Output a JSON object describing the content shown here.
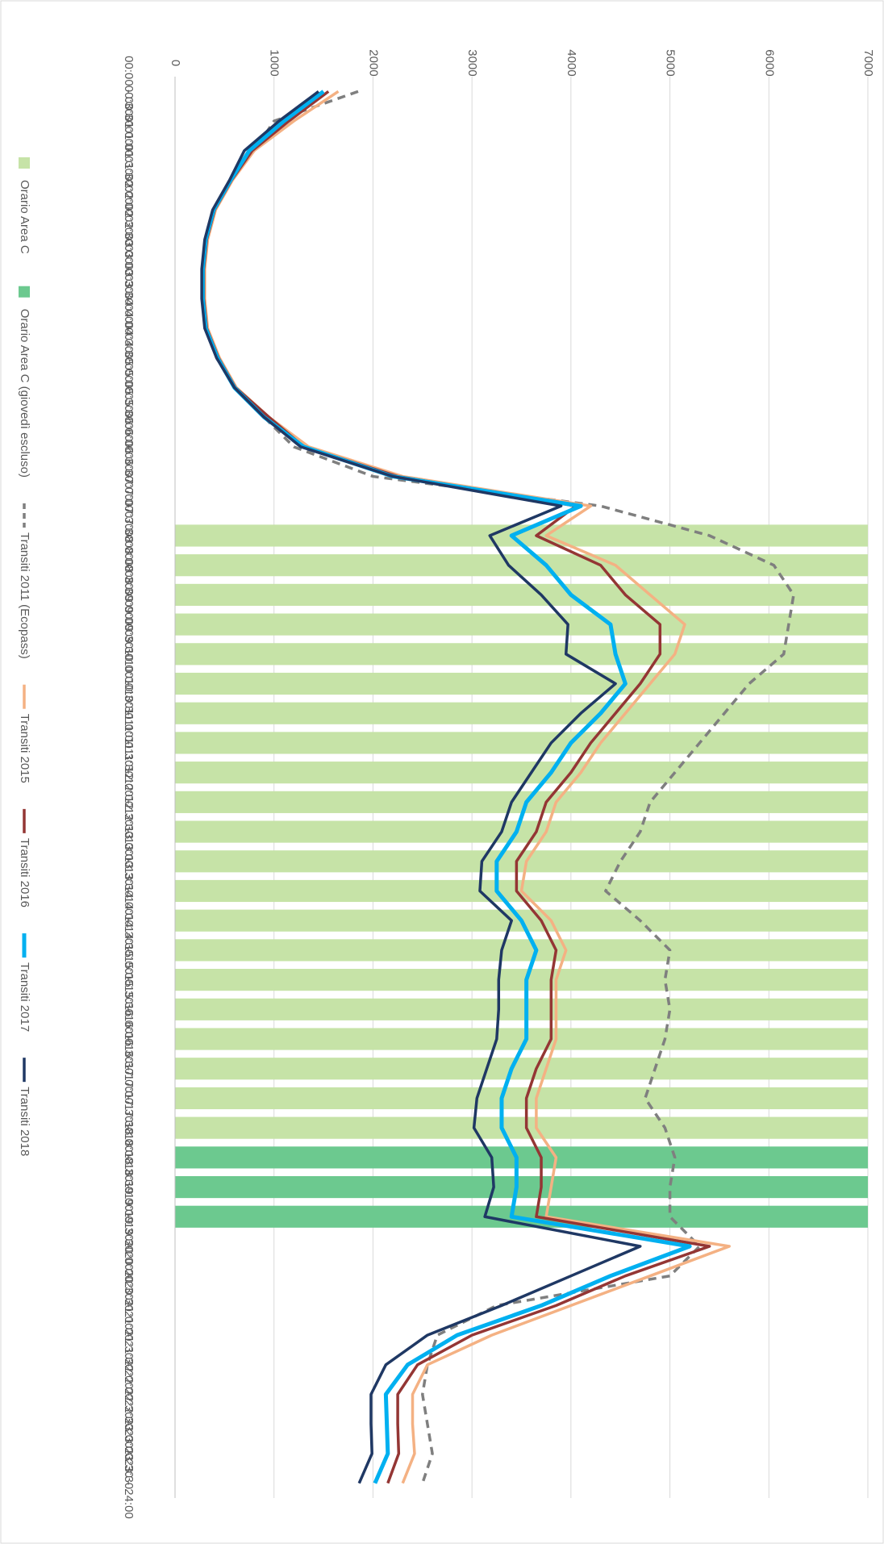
{
  "chart_data": {
    "type": "line",
    "orientation": "rotated",
    "categories": [
      "00:00 - 00:30",
      "00:30 - 01:00",
      "01:00 - 01:30",
      "01:30 - 02:00",
      "02:00 - 02:30",
      "02:30 - 03:00",
      "03:00 - 03:30",
      "03:30 - 04:00",
      "04:00 - 04:30",
      "04:30 - 05:00",
      "05:00 - 05:30",
      "05:30 - 06:00",
      "06:00 - 06:30",
      "06:30 - 07:00",
      "07:00 - 07:30",
      "07:30 - 08:00",
      "08:00 - 08:30",
      "08:30 - 09:00",
      "09:00 - 09:30",
      "09:30 - 10:00",
      "10:00 - 10:30",
      "10:30 - 11:00",
      "11:00 - 11:30",
      "11:30 - 12:00",
      "12:00 - 12:30",
      "12:30 - 13:00",
      "13:00 - 13:30",
      "13:30 - 14:00",
      "14:00 - 14:30",
      "14:30 - 15:00",
      "15:00 - 15:30",
      "15:30 - 16:00",
      "16:00 - 16:30",
      "16:30 - 17:00",
      "17:00 - 17:30",
      "17:30 - 18:00",
      "18:00 - 18:30",
      "18:30 - 19:00",
      "19:00 - 19:30",
      "19:30 - 20:00",
      "20:00 - 20:30",
      "20:30 - 21:00",
      "21:00 - 21:30",
      "21:30 - 22:00",
      "22:00 - 22:30",
      "22:30 - 23:00",
      "23:00 - 23:30",
      "23:30 - 24:00"
    ],
    "ylim": [
      0,
      7000
    ],
    "yticks": [
      0,
      1000,
      2000,
      3000,
      4000,
      5000,
      6000,
      7000
    ],
    "grid": true,
    "legend": "bottom",
    "series": [
      {
        "name": "Orario Area C",
        "type": "bar",
        "color": "#c6e3a7",
        "values": [
          null,
          null,
          null,
          null,
          null,
          null,
          null,
          null,
          null,
          null,
          null,
          null,
          null,
          null,
          null,
          7000,
          7000,
          7000,
          7000,
          7000,
          7000,
          7000,
          7000,
          7000,
          7000,
          7000,
          7000,
          7000,
          7000,
          7000,
          7000,
          7000,
          7000,
          7000,
          7000,
          7000,
          null,
          null,
          null,
          null,
          null,
          null,
          null,
          null,
          null,
          null,
          null,
          null
        ]
      },
      {
        "name": "Orario Area C (giovedì escluso)",
        "type": "bar",
        "color": "#6cc98f",
        "values": [
          null,
          null,
          null,
          null,
          null,
          null,
          null,
          null,
          null,
          null,
          null,
          null,
          null,
          null,
          null,
          null,
          null,
          null,
          null,
          null,
          null,
          null,
          null,
          null,
          null,
          null,
          null,
          null,
          null,
          null,
          null,
          null,
          null,
          null,
          null,
          null,
          7000,
          7000,
          7000,
          null,
          null,
          null,
          null,
          null,
          null,
          null,
          null,
          null
        ]
      },
      {
        "name": "Transiti 2011 (Ecopass)",
        "type": "line",
        "dashed": true,
        "color": "#7f7f7f",
        "values": [
          1850,
          1000,
          800,
          550,
          400,
          310,
          280,
          290,
          320,
          420,
          600,
          900,
          1200,
          2000,
          4300,
          5400,
          6050,
          6250,
          6200,
          6150,
          5800,
          5550,
          5300,
          5050,
          4800,
          4700,
          4500,
          4350,
          4700,
          5000,
          4950,
          5000,
          4950,
          4850,
          4750,
          4950,
          5050,
          5000,
          5000,
          5300,
          5000,
          3250,
          2650,
          2550,
          2500,
          2550,
          2600,
          2500
        ]
      },
      {
        "name": "Transiti 2015",
        "type": "line",
        "color": "#f4b183",
        "values": [
          1650,
          1200,
          800,
          580,
          410,
          330,
          300,
          300,
          330,
          450,
          620,
          950,
          1350,
          2300,
          4200,
          3750,
          4450,
          4800,
          5150,
          5050,
          4800,
          4550,
          4300,
          4100,
          3850,
          3750,
          3550,
          3500,
          3800,
          3950,
          3850,
          3850,
          3850,
          3750,
          3650,
          3650,
          3850,
          3800,
          3750,
          5600,
          4800,
          4000,
          3200,
          2550,
          2400,
          2400,
          2420,
          2300
        ]
      },
      {
        "name": "Transiti 2016",
        "type": "line",
        "color": "#943634",
        "values": [
          1550,
          1150,
          780,
          570,
          400,
          320,
          290,
          290,
          320,
          440,
          610,
          950,
          1300,
          2250,
          4050,
          3650,
          4300,
          4550,
          4900,
          4900,
          4700,
          4450,
          4200,
          4000,
          3750,
          3650,
          3450,
          3450,
          3700,
          3850,
          3800,
          3800,
          3800,
          3650,
          3550,
          3550,
          3700,
          3700,
          3650,
          5400,
          4550,
          3850,
          3000,
          2450,
          2250,
          2250,
          2260,
          2150
        ]
      },
      {
        "name": "Transiti 2017",
        "type": "line",
        "color": "#00b0f0",
        "width": 5,
        "values": [
          1500,
          1100,
          750,
          560,
          390,
          310,
          280,
          280,
          310,
          430,
          600,
          900,
          1300,
          2200,
          4100,
          3400,
          3750,
          4000,
          4400,
          4450,
          4550,
          4300,
          4000,
          3800,
          3550,
          3450,
          3250,
          3250,
          3500,
          3650,
          3550,
          3550,
          3550,
          3400,
          3300,
          3300,
          3450,
          3450,
          3400,
          5200,
          4400,
          3700,
          2850,
          2350,
          2130,
          2140,
          2150,
          2020
        ]
      },
      {
        "name": "Transiti 2018",
        "type": "line",
        "color": "#1f3864",
        "values": [
          1450,
          1050,
          700,
          550,
          380,
          300,
          270,
          270,
          300,
          420,
          600,
          900,
          1270,
          2200,
          3900,
          3180,
          3370,
          3700,
          3970,
          3950,
          4450,
          4100,
          3800,
          3600,
          3400,
          3300,
          3100,
          3080,
          3400,
          3300,
          3270,
          3270,
          3250,
          3150,
          3050,
          3020,
          3200,
          3220,
          3130,
          4700,
          4000,
          3300,
          2550,
          2130,
          1980,
          1980,
          1990,
          1860
        ]
      }
    ]
  }
}
